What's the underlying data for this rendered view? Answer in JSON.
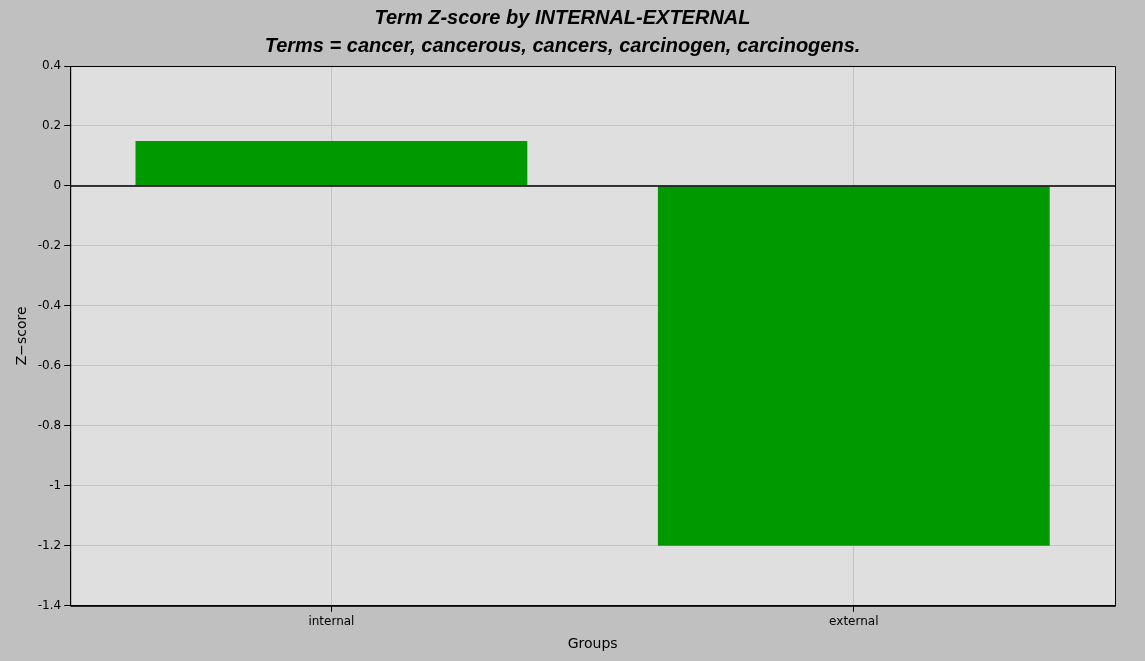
{
  "chart_data": {
    "type": "bar",
    "title": "Term Z-score by INTERNAL-EXTERNAL",
    "subtitle": "Terms = cancer, cancerous, cancers, carcinogen, carcinogens.",
    "xlabel": "Groups",
    "ylabel": "Z−score",
    "categories": [
      "internal",
      "external"
    ],
    "values": [
      0.15,
      -1.2
    ],
    "color": "#009900",
    "ylim": [
      -1.4,
      0.4
    ],
    "yticks": [
      -1.4,
      -1.2,
      -1,
      -0.8,
      -0.6,
      -0.4,
      -0.2,
      0,
      0.2,
      0.4
    ],
    "ref_lines": [
      {
        "axis": "y",
        "value": 0,
        "color": "#000000"
      }
    ],
    "grid": true
  }
}
